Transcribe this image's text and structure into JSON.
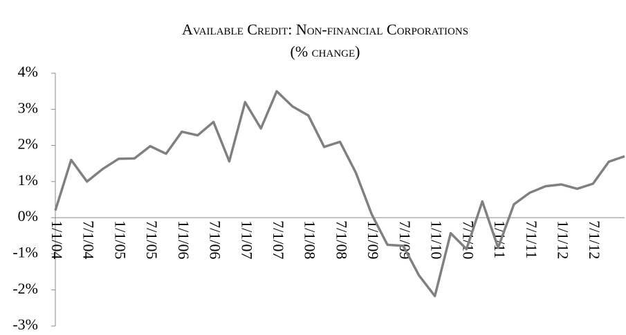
{
  "chart_data": {
    "type": "line",
    "title": "Available Credit: Non-financial Corporations",
    "subtitle": "(% change)",
    "categories": [
      "1/1/04",
      null,
      "7/1/04",
      null,
      "1/1/05",
      null,
      "7/1/05",
      null,
      "1/1/06",
      null,
      "7/1/06",
      null,
      "1/1/07",
      null,
      "7/1/07",
      null,
      "1/1/08",
      null,
      "7/1/08",
      null,
      "1/1/09",
      null,
      "7/1/09",
      null,
      "1/1/10",
      null,
      "7/1/10",
      null,
      "1/1/11",
      null,
      "7/1/11",
      null,
      "1/1/12",
      null,
      "7/1/12",
      null,
      null
    ],
    "series": [
      {
        "color": "#808080",
        "values": [
          0.2,
          1.6,
          1.0,
          1.35,
          1.63,
          1.64,
          1.98,
          1.77,
          2.38,
          2.28,
          2.65,
          1.56,
          3.2,
          2.47,
          3.5,
          3.08,
          2.83,
          1.96,
          2.1,
          1.25,
          0.1,
          -0.75,
          -0.78,
          -1.6,
          -2.17,
          -0.43,
          -0.87,
          0.45,
          -0.83,
          0.37,
          0.69,
          0.87,
          0.92,
          0.8,
          0.94,
          1.55,
          1.7
        ]
      }
    ],
    "ylim": [
      -3,
      4
    ],
    "yticks": [
      {
        "value": -3,
        "label": "-3%"
      },
      {
        "value": -2,
        "label": "-2%"
      },
      {
        "value": -1,
        "label": "-1%"
      },
      {
        "value": 0,
        "label": "0%"
      },
      {
        "value": 1,
        "label": "1%"
      },
      {
        "value": 2,
        "label": "2%"
      },
      {
        "value": 3,
        "label": "3%"
      },
      {
        "value": 4,
        "label": "4%"
      }
    ],
    "grid": false
  }
}
